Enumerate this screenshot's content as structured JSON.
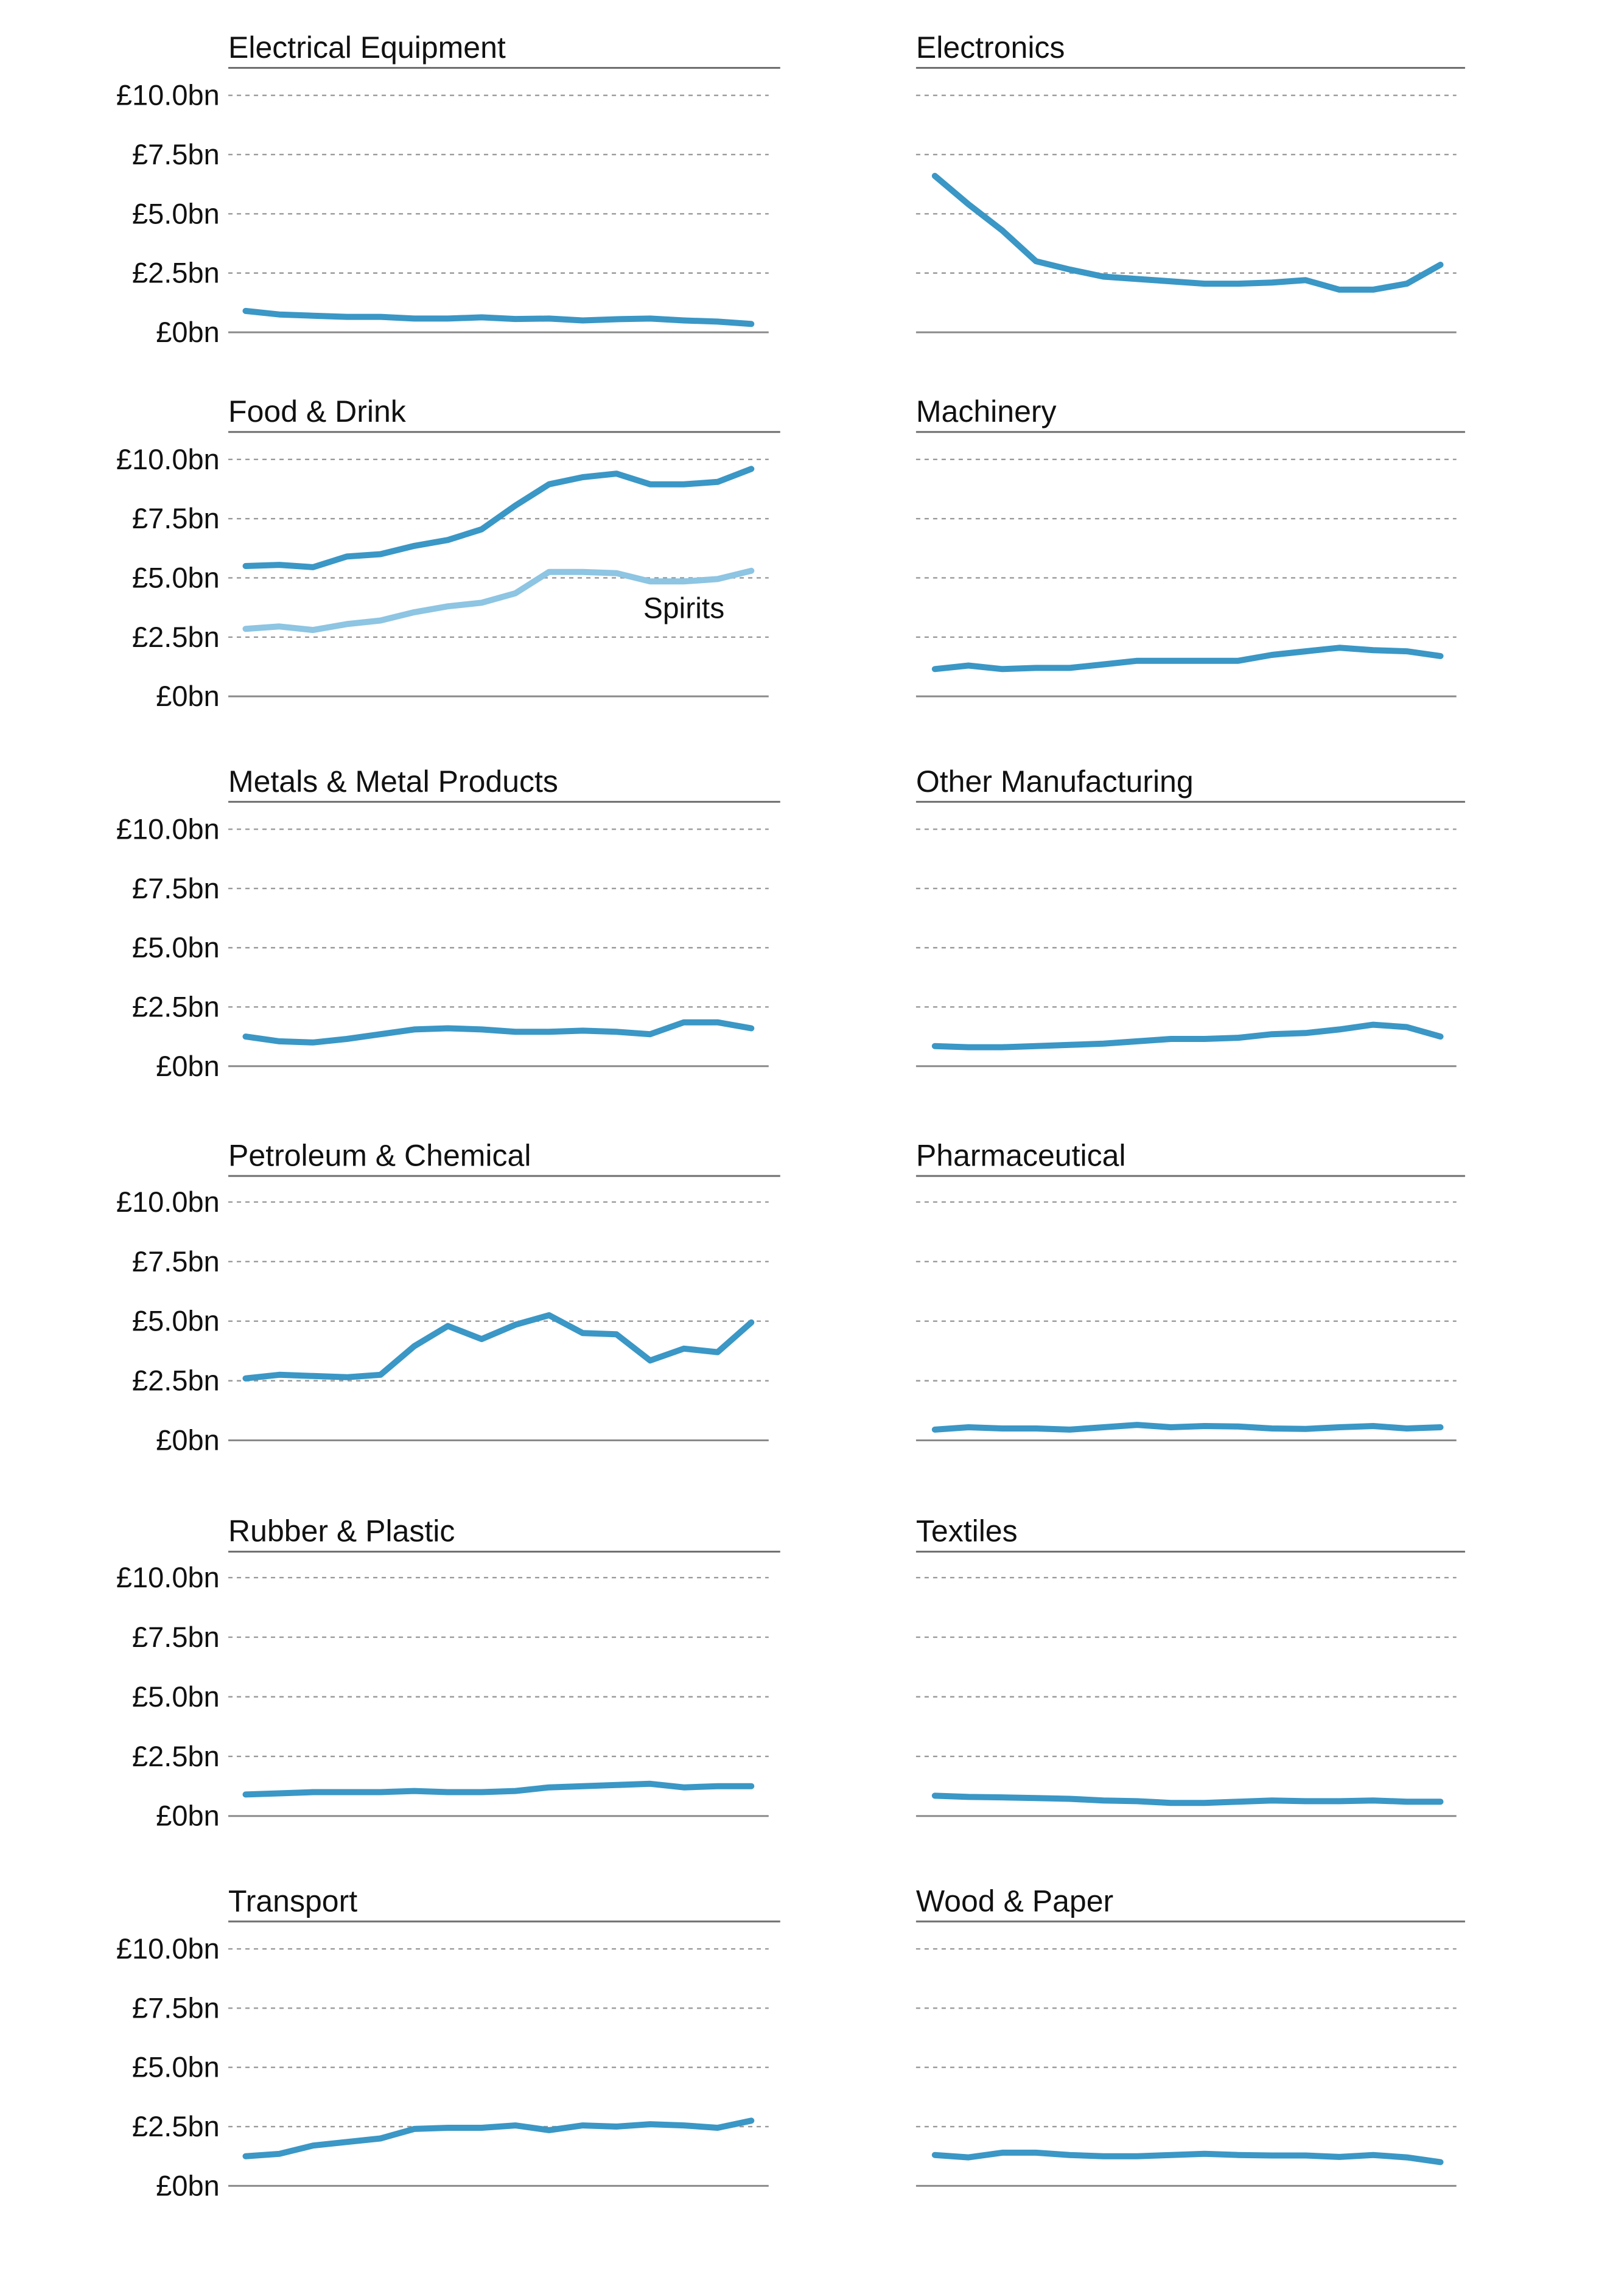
{
  "chart_data": [
    {
      "type": "line",
      "title": "Electrical Equipment",
      "ylim": [
        0,
        10
      ],
      "yticks": [
        0,
        2.5,
        5,
        7.5,
        10
      ],
      "ytick_labels": [
        "£0bn",
        "£2.5bn",
        "£5.0bn",
        "£7.5bn",
        "£10.0bn"
      ],
      "show_tick_labels": true,
      "series": [
        {
          "values": [
            0.9,
            0.75,
            0.7,
            0.65,
            0.65,
            0.58,
            0.58,
            0.63,
            0.56,
            0.58,
            0.5,
            0.55,
            0.58,
            0.5,
            0.45,
            0.35
          ],
          "color": "#3a97c6"
        }
      ]
    },
    {
      "type": "line",
      "title": "Electronics",
      "ylim": [
        0,
        10
      ],
      "yticks": [
        0,
        2.5,
        5,
        7.5,
        10
      ],
      "ytick_labels": [
        "£0bn",
        "£2.5bn",
        "£5.0bn",
        "£7.5bn",
        "£10.0bn"
      ],
      "show_tick_labels": false,
      "series": [
        {
          "values": [
            6.6,
            5.4,
            4.3,
            3.0,
            2.65,
            2.35,
            2.25,
            2.15,
            2.05,
            2.05,
            2.1,
            2.2,
            1.8,
            1.8,
            2.05,
            2.85
          ],
          "color": "#3a97c6"
        }
      ]
    },
    {
      "type": "line",
      "title": "Food & Drink",
      "ylim": [
        0,
        10
      ],
      "yticks": [
        0,
        2.5,
        5,
        7.5,
        10
      ],
      "ytick_labels": [
        "£0bn",
        "£2.5bn",
        "£5.0bn",
        "£7.5bn",
        "£10.0bn"
      ],
      "show_tick_labels": true,
      "annotation": {
        "text": "Spirits",
        "series_index": 1
      },
      "series": [
        {
          "values": [
            5.5,
            5.55,
            5.45,
            5.9,
            6.0,
            6.35,
            6.6,
            7.05,
            8.05,
            8.95,
            9.25,
            9.4,
            8.95,
            8.95,
            9.05,
            9.6
          ],
          "color": "#3a97c6"
        },
        {
          "name": "Spirits",
          "values": [
            2.85,
            2.95,
            2.8,
            3.05,
            3.2,
            3.55,
            3.8,
            3.95,
            4.35,
            5.25,
            5.25,
            5.2,
            4.85,
            4.85,
            4.95,
            5.3
          ],
          "color": "#8dc5e3"
        }
      ]
    },
    {
      "type": "line",
      "title": "Machinery",
      "ylim": [
        0,
        10
      ],
      "yticks": [
        0,
        2.5,
        5,
        7.5,
        10
      ],
      "ytick_labels": [
        "£0bn",
        "£2.5bn",
        "£5.0bn",
        "£7.5bn",
        "£10.0bn"
      ],
      "show_tick_labels": false,
      "series": [
        {
          "values": [
            1.15,
            1.3,
            1.15,
            1.2,
            1.2,
            1.35,
            1.5,
            1.5,
            1.5,
            1.5,
            1.75,
            1.9,
            2.05,
            1.95,
            1.9,
            1.7
          ],
          "color": "#3a97c6"
        }
      ]
    },
    {
      "type": "line",
      "title": "Metals & Metal Products",
      "ylim": [
        0,
        10
      ],
      "yticks": [
        0,
        2.5,
        5,
        7.5,
        10
      ],
      "ytick_labels": [
        "£0bn",
        "£2.5bn",
        "£5.0bn",
        "£7.5bn",
        "£10.0bn"
      ],
      "show_tick_labels": true,
      "series": [
        {
          "values": [
            1.25,
            1.05,
            1.0,
            1.15,
            1.35,
            1.55,
            1.6,
            1.55,
            1.45,
            1.45,
            1.5,
            1.45,
            1.35,
            1.85,
            1.85,
            1.6
          ],
          "color": "#3a97c6"
        }
      ]
    },
    {
      "type": "line",
      "title": "Other Manufacturing",
      "ylim": [
        0,
        10
      ],
      "yticks": [
        0,
        2.5,
        5,
        7.5,
        10
      ],
      "ytick_labels": [
        "£0bn",
        "£2.5bn",
        "£5.0bn",
        "£7.5bn",
        "£10.0bn"
      ],
      "show_tick_labels": false,
      "series": [
        {
          "values": [
            0.85,
            0.8,
            0.8,
            0.85,
            0.9,
            0.95,
            1.05,
            1.15,
            1.15,
            1.2,
            1.35,
            1.4,
            1.55,
            1.75,
            1.65,
            1.25
          ],
          "color": "#3a97c6"
        }
      ]
    },
    {
      "type": "line",
      "title": "Petroleum & Chemical",
      "ylim": [
        0,
        10
      ],
      "yticks": [
        0,
        2.5,
        5,
        7.5,
        10
      ],
      "ytick_labels": [
        "£0bn",
        "£2.5bn",
        "£5.0bn",
        "£7.5bn",
        "£10.0bn"
      ],
      "show_tick_labels": true,
      "series": [
        {
          "values": [
            2.6,
            2.75,
            2.7,
            2.65,
            2.75,
            3.95,
            4.8,
            4.25,
            4.85,
            5.25,
            4.5,
            4.45,
            3.35,
            3.85,
            3.7,
            4.95
          ],
          "color": "#3a97c6"
        }
      ]
    },
    {
      "type": "line",
      "title": "Pharmaceutical",
      "ylim": [
        0,
        10
      ],
      "yticks": [
        0,
        2.5,
        5,
        7.5,
        10
      ],
      "ytick_labels": [
        "£0bn",
        "£2.5bn",
        "£5.0bn",
        "£7.5bn",
        "£10.0bn"
      ],
      "show_tick_labels": false,
      "series": [
        {
          "values": [
            0.45,
            0.55,
            0.5,
            0.5,
            0.45,
            0.55,
            0.65,
            0.55,
            0.6,
            0.58,
            0.5,
            0.48,
            0.55,
            0.6,
            0.5,
            0.55
          ],
          "color": "#3a97c6"
        }
      ]
    },
    {
      "type": "line",
      "title": "Rubber & Plastic",
      "ylim": [
        0,
        10
      ],
      "yticks": [
        0,
        2.5,
        5,
        7.5,
        10
      ],
      "ytick_labels": [
        "£0bn",
        "£2.5bn",
        "£5.0bn",
        "£7.5bn",
        "£10.0bn"
      ],
      "show_tick_labels": true,
      "series": [
        {
          "values": [
            0.9,
            0.95,
            1.0,
            1.0,
            1.0,
            1.05,
            1.0,
            1.0,
            1.05,
            1.2,
            1.25,
            1.3,
            1.35,
            1.2,
            1.25,
            1.25
          ],
          "color": "#3a97c6"
        }
      ]
    },
    {
      "type": "line",
      "title": "Textiles",
      "ylim": [
        0,
        10
      ],
      "yticks": [
        0,
        2.5,
        5,
        7.5,
        10
      ],
      "ytick_labels": [
        "£0bn",
        "£2.5bn",
        "£5.0bn",
        "£7.5bn",
        "£10.0bn"
      ],
      "show_tick_labels": false,
      "series": [
        {
          "values": [
            0.85,
            0.8,
            0.78,
            0.75,
            0.72,
            0.65,
            0.62,
            0.55,
            0.55,
            0.6,
            0.65,
            0.62,
            0.62,
            0.65,
            0.6,
            0.6
          ],
          "color": "#3a97c6"
        }
      ]
    },
    {
      "type": "line",
      "title": "Transport",
      "ylim": [
        0,
        10
      ],
      "yticks": [
        0,
        2.5,
        5,
        7.5,
        10
      ],
      "ytick_labels": [
        "£0bn",
        "£2.5bn",
        "£5.0bn",
        "£7.5bn",
        "£10.0bn"
      ],
      "show_tick_labels": true,
      "series": [
        {
          "values": [
            1.25,
            1.35,
            1.7,
            1.85,
            2.0,
            2.4,
            2.45,
            2.45,
            2.55,
            2.35,
            2.55,
            2.5,
            2.6,
            2.55,
            2.45,
            2.75
          ],
          "color": "#3a97c6"
        }
      ]
    },
    {
      "type": "line",
      "title": "Wood & Paper",
      "ylim": [
        0,
        10
      ],
      "yticks": [
        0,
        2.5,
        5,
        7.5,
        10
      ],
      "ytick_labels": [
        "£0bn",
        "£2.5bn",
        "£5.0bn",
        "£7.5bn",
        "£10.0bn"
      ],
      "show_tick_labels": false,
      "series": [
        {
          "values": [
            1.3,
            1.2,
            1.4,
            1.4,
            1.3,
            1.25,
            1.25,
            1.3,
            1.35,
            1.3,
            1.28,
            1.28,
            1.22,
            1.3,
            1.2,
            1.0
          ],
          "color": "#3a97c6"
        }
      ]
    }
  ]
}
